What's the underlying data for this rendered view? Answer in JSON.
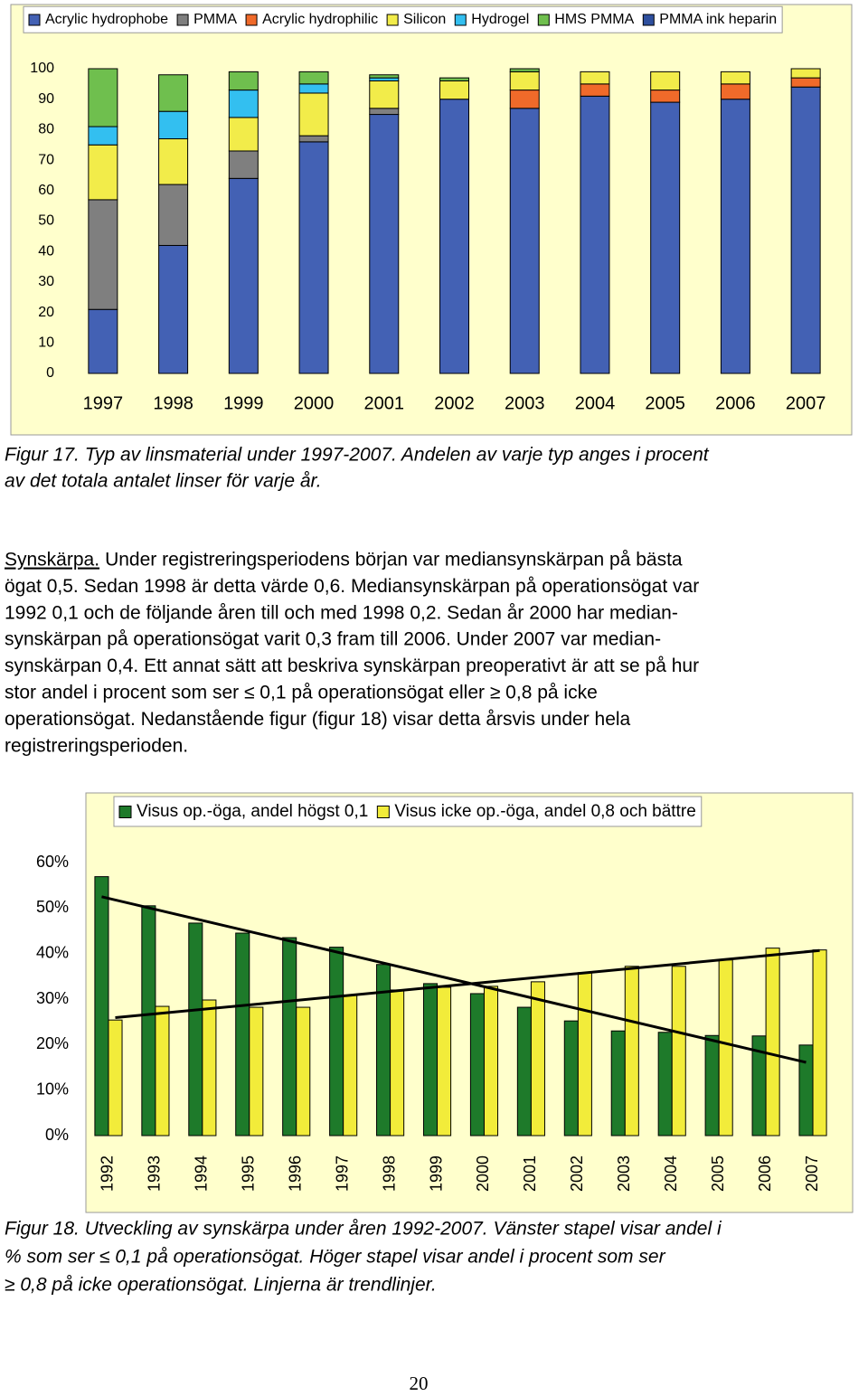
{
  "chart_data": [
    {
      "type": "stacked_bar",
      "categories": [
        "1997",
        "1998",
        "1999",
        "2000",
        "2001",
        "2002",
        "2003",
        "2004",
        "2005",
        "2006",
        "2007"
      ],
      "series": [
        {
          "name": "Acrylic hydrophobe",
          "color": "#4361b4",
          "values": [
            21,
            42,
            64,
            76,
            85,
            90,
            87,
            91,
            89,
            90,
            94
          ]
        },
        {
          "name": "PMMA",
          "color": "#7f7f7f",
          "values": [
            36,
            20,
            9,
            2,
            2,
            0,
            0,
            0,
            0,
            0,
            0
          ]
        },
        {
          "name": "Acrylic hydrophilic",
          "color": "#f06a2a",
          "values": [
            0,
            0,
            0,
            0,
            0,
            0,
            6,
            4,
            4,
            5,
            3
          ]
        },
        {
          "name": "Silicon",
          "color": "#f2ec4a",
          "values": [
            18,
            15,
            11,
            14,
            9,
            6,
            6,
            4,
            6,
            4,
            3
          ]
        },
        {
          "name": "Hydrogel",
          "color": "#33bff0",
          "values": [
            6,
            9,
            9,
            3,
            1,
            0,
            0,
            0,
            0,
            0,
            0
          ]
        },
        {
          "name": "HMS PMMA",
          "color": "#6fbf4e",
          "values": [
            19,
            12,
            6,
            4,
            1,
            1,
            1,
            0,
            0,
            0,
            0
          ]
        },
        {
          "name": "PMMA ink heparin",
          "color": "#2e4f9e",
          "values": [
            0,
            0,
            0,
            0,
            0,
            0,
            0,
            0,
            0,
            0,
            0
          ]
        }
      ],
      "ylim": [
        0,
        100
      ],
      "yticks": [
        0,
        10,
        20,
        30,
        40,
        50,
        60,
        70,
        80,
        90,
        100
      ],
      "grid": false
    },
    {
      "type": "bar",
      "categories": [
        "1992",
        "1993",
        "1994",
        "1995",
        "1996",
        "1997",
        "1998",
        "1999",
        "2000",
        "2001",
        "2002",
        "2003",
        "2004",
        "2005",
        "2006",
        "2007"
      ],
      "series": [
        {
          "name": "Visus op.-öga, andel högst 0,1",
          "color": "#1e7a2a",
          "values": [
            56.9,
            50.5,
            46.7,
            44.5,
            43.5,
            41.4,
            37.6,
            33.4,
            31.2,
            28.2,
            25.2,
            23,
            22.7,
            22,
            21.9,
            19.9
          ]
        },
        {
          "name": "Visus icke op.-öga, andel 0,8 och bättre",
          "color": "#f2ec3a",
          "values": [
            25.4,
            28.4,
            29.8,
            28.2,
            28.2,
            30.8,
            32,
            32.6,
            32.8,
            33.8,
            35.8,
            37.2,
            37.2,
            38.6,
            41.2,
            40.8
          ]
        }
      ],
      "ylim": [
        0,
        60
      ],
      "yticks": [
        {
          "value": 0,
          "label": "0%"
        },
        {
          "value": 10,
          "label": "10%"
        },
        {
          "value": 20,
          "label": "20%"
        },
        {
          "value": 30,
          "label": "30%"
        },
        {
          "value": 40,
          "label": "40%"
        },
        {
          "value": 50,
          "label": "50%"
        },
        {
          "value": 60,
          "label": "60%"
        }
      ],
      "grid": false,
      "trendline": true
    }
  ],
  "caption_17": [
    "Figur 17. Typ av linsmaterial under 1997-2007. Andelen av varje typ anges i procent",
    "av det totala antalet linser för varje år."
  ],
  "paragraph": {
    "heading": "Synskärpa.",
    "lines": [
      "Under registreringsperiodens början var mediansynskärpan på bästa",
      "ögat 0,5. Sedan 1998 är detta värde 0,6. Mediansynskärpan på operationsögat var",
      "1992 0,1 och de följande åren till och med 1998 0,2. Sedan år 2000 har median-",
      "synskärpan på operationsögat varit 0,3 fram till 2006. Under 2007 var median-",
      "synskärpan 0,4. Ett annat sätt att beskriva synskärpan preoperativt är att se på hur",
      "stor andel i procent som ser ≤ 0,1 på operationsögat eller ≥ 0,8 på icke",
      "operationsögat. Nedanstående figur (figur 18) visar detta årsvis under hela",
      "registreringsperioden."
    ]
  },
  "caption_18": [
    "Figur 18. Utveckling av synskärpa under åren 1992-2007. Vänster stapel visar andel i",
    "% som ser ≤ 0,1 på operationsögat. Höger stapel visar andel i procent som ser",
    "≥ 0,8 på icke operationsögat. Linjerna är trendlinjer."
  ],
  "page_number": "20"
}
